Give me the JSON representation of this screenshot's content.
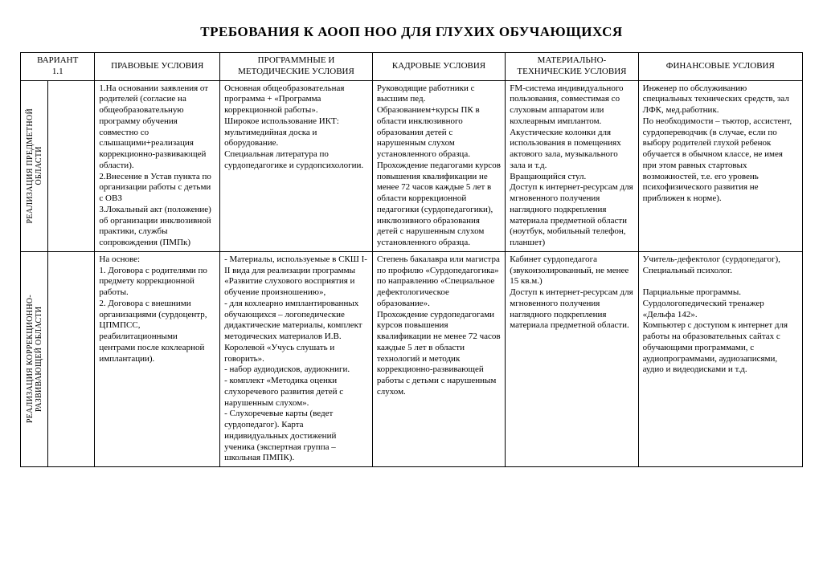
{
  "title": "ТРЕБОВАНИЯ К АООП НОО ДЛЯ ГЛУХИХ ОБУЧАЮЩИХСЯ",
  "table": {
    "border_color": "#000000",
    "background_color": "#ffffff",
    "text_color": "#000000",
    "font_family": "Times New Roman",
    "base_fontsize_pt": 11,
    "title_fontsize_pt": 17,
    "column_widths_pct": [
      3.5,
      6,
      16,
      19.5,
      17,
      17,
      21
    ],
    "headers": {
      "c1": "ВАРИАНТ\n1.1",
      "c2": "ПРАВОВЫЕ УСЛОВИЯ",
      "c3": "ПРОГРАММНЫЕ И\nМЕТОДИЧЕСКИЕ УСЛОВИЯ",
      "c4": "КАДРОВЫЕ УСЛОВИЯ",
      "c5": "МАТЕРИАЛЬНО-\nТЕХНИЧЕСКИЕ УСЛОВИЯ",
      "c6": "ФИНАНСОВЫЕ УСЛОВИЯ"
    },
    "rows": [
      {
        "vlabel": "РЕАЛИЗАЦИЯ ПРЕДМЕТНОЙ\nОБЛАСТИ",
        "c2": "1.На основании заявления от родителей (согласие на общеобразовательную программу обучения совместно со слышащими+реализация коррекционно-развивающей области).\n2.Внесение в Устав пункта по организации работы с детьми с ОВЗ\n3.Локальный акт (положение) об организации инклюзивной практики, службы сопровождения (ПМПк)",
        "c3": "Основная общеобразовательная программа + «Программа коррекционной работы».\nШирокое использование ИКТ: мультимедийная доска и оборудование.\nСпециальная литература по сурдопедагогике и сурдопсихологии.",
        "c4": "Руководящие работники с высшим пед. Образованием+курсы ПК в области инклюзивного образования детей с нарушенным слухом установленного образца.\nПрохождение педагогами курсов повышения квалификации не менее 72 часов каждые 5 лет в области коррекционной педагогики (сурдопедагогики), инклюзивного образования детей с нарушенным слухом установленного образца.",
        "c5": "FM-система индивидуального пользования, совместимая со слуховым аппаратом или кохлеарным  имплантом.\n Акустические колонки для использования в помещениях актового зала, музыкального зала и т.д.\nВращающийся стул.\nДоступ к интернет-ресурсам для мгновенного получения наглядного подкрепления материала предметной области (ноутбук, мобильный телефон, планшет)",
        "c6": "Инженер по обслуживанию специальных технических средств, зал ЛФК, мед.работник.\nПо необходимости – тьютор, ассистент, сурдопереводчик  (в случае, если по выбору родителей глухой ребенок обучается в обычном классе, не имея при этом равных стартовых возможностей, т.е. его уровень психофизического развития не приближен к норме)."
      },
      {
        "vlabel": "РЕАЛИЗАЦИЯ КОРРЕКЦИОННО-\nРАЗВИВАЮЩЕЙ ОБЛАСТИ",
        "c2": "На основе:\n1. Договора с родителями по предмету коррекционной работы.\n2. Договора с внешними организациями (сурдоцентр, ЦПМПСС, реабилитационными центрами после кохлеарной имплантации).",
        "c3": "- Материалы, используемые в СКШ I-II вида для реализации программы «Развитие слухового восприятия и обучение произношению»,\n- для кохлеарно имплантированных обучающихся – логопедические дидактические материалы, комплект методических материалов И.В. Королевой «Учусь слушать и говорить».\n- набор аудиодисков, аудиокниги.\n- комплект «Методика оценки слухоречевого развития детей с нарушенным слухом».\n- Слухоречевые карты (ведет сурдопедагог). Карта индивидуальных достижений ученика (экспертная группа – школьная ПМПК).",
        "c4": "Степень бакалавра или магистра по профилю «Сурдопедагогика» по направлению «Специальное дефектологическое образование».\nПрохождение сурдопедагогами курсов повышения квалификации не менее 72 часов каждые 5 лет  в области технологий и методик коррекционно-развивающей работы с детьми с нарушенным слухом.",
        "c5": "Кабинет сурдопедагога (звукоизолированный, не менее 15 кв.м.)\nДоступ к интернет-ресурсам для мгновенного получения наглядного подкрепления материала предметной области.",
        "c6": "Учитель-дефектолог (сурдопедагог), Специальный психолог.\n\nПарциальные программы.\nСурдологопедический тренажер «Дельфа 142».\nКомпьютер с доступом к интернет для работы на образовательных сайтах с обучающими программами, с  аудиопрограммами, аудиозаписями, аудио и видеодисками и т.д."
      }
    ]
  }
}
